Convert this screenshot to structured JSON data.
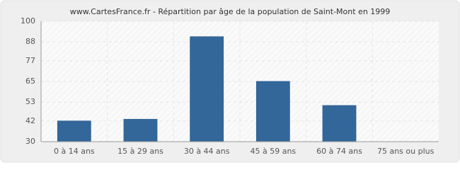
{
  "chart_data": {
    "type": "bar",
    "title": "www.CartesFrance.fr - Répartition par âge de la population de Saint-Mont en 1999",
    "categories": [
      "0 à 14 ans",
      "15 à 29 ans",
      "30 à 44 ans",
      "45 à 59 ans",
      "60 à 74 ans",
      "75 ans ou plus"
    ],
    "values": [
      42,
      43,
      91,
      65,
      51,
      30
    ],
    "color": "#336699",
    "ylim": [
      30,
      100
    ],
    "yticks": [
      30,
      42,
      53,
      65,
      77,
      88,
      100
    ],
    "grid": true
  }
}
